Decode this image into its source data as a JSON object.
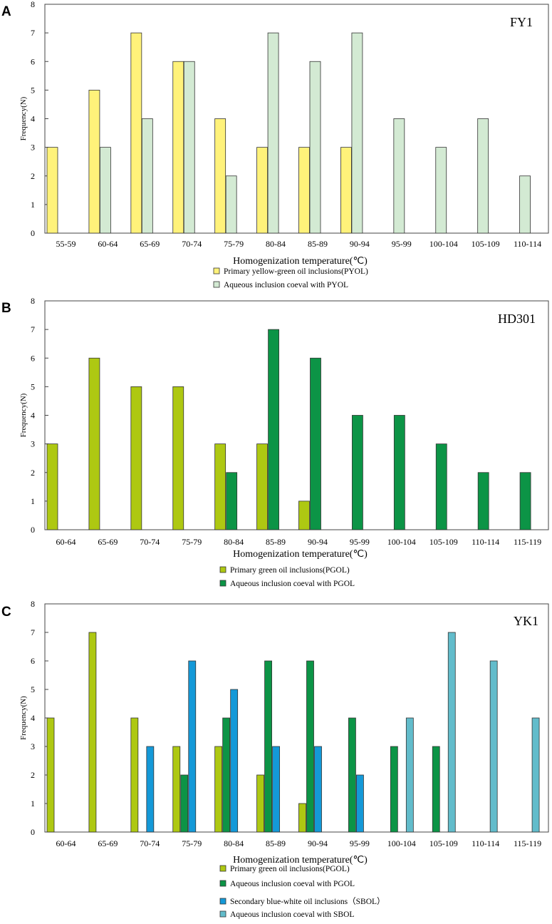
{
  "chart_data": [
    {
      "panel": "A",
      "type": "bar",
      "title": "FY1",
      "xlabel": "Homogenization temperature(℃)",
      "ylabel": "Frequency(N)",
      "ylim": [
        0,
        8
      ],
      "yticks": [
        "0",
        "1",
        "2",
        "3",
        "4",
        "5",
        "6",
        "7",
        "8"
      ],
      "categories": [
        "55-59",
        "60-64",
        "65-69",
        "70-74",
        "75-79",
        "80-84",
        "85-89",
        "90-94",
        "95-99",
        "100-104",
        "105-109",
        "110-114"
      ],
      "series": [
        {
          "name": "Primary yellow-green oil inclusions(PYOL)",
          "color": "#fff27a",
          "values": [
            3,
            5,
            7,
            6,
            4,
            3,
            3,
            3,
            0,
            0,
            0,
            0
          ]
        },
        {
          "name": "Aqueous inclusion coeval with PYOL",
          "color": "#d3ead3",
          "values": [
            0,
            3,
            4,
            6,
            2,
            7,
            6,
            7,
            4,
            3,
            4,
            2
          ]
        }
      ]
    },
    {
      "panel": "B",
      "type": "bar",
      "title": "HD301",
      "xlabel": "Homogenization temperature(℃)",
      "ylabel": "Frequency(N)",
      "ylim": [
        0,
        8
      ],
      "yticks": [
        "0",
        "1",
        "2",
        "3",
        "4",
        "5",
        "6",
        "7",
        "8"
      ],
      "categories": [
        "60-64",
        "65-69",
        "70-74",
        "75-79",
        "80-84",
        "85-89",
        "90-94",
        "95-99",
        "100-104",
        "105-109",
        "110-114",
        "115-119"
      ],
      "series": [
        {
          "name": "Primary green oil inclusions(PGOL)",
          "color": "#aec812",
          "values": [
            3,
            6,
            5,
            5,
            3,
            3,
            1,
            0,
            0,
            0,
            0,
            0
          ]
        },
        {
          "name": "Aqueous inclusion coeval with PGOL",
          "color": "#0c9446",
          "values": [
            0,
            0,
            0,
            0,
            2,
            7,
            6,
            4,
            4,
            3,
            2,
            2
          ]
        }
      ]
    },
    {
      "panel": "C",
      "type": "bar",
      "title": "YK1",
      "xlabel": "Homogenization temperature(℃)",
      "ylabel": "Frequency(N)",
      "ylim": [
        0,
        8
      ],
      "yticks": [
        "0",
        "1",
        "2",
        "3",
        "4",
        "5",
        "6",
        "7",
        "8"
      ],
      "categories": [
        "60-64",
        "65-69",
        "70-74",
        "75-79",
        "80-84",
        "85-89",
        "90-94",
        "95-99",
        "100-104",
        "105-109",
        "110-114",
        "115-119"
      ],
      "series": [
        {
          "name": "Primary green oil inclusions(PGOL)",
          "color": "#aec812",
          "values": [
            4,
            7,
            4,
            3,
            3,
            2,
            1,
            0,
            0,
            0,
            0,
            0
          ]
        },
        {
          "name": "Aqueous inclusion coeval with PGOL",
          "color": "#0c9446",
          "values": [
            0,
            0,
            0,
            2,
            4,
            6,
            6,
            4,
            3,
            3,
            0,
            0
          ]
        },
        {
          "name": "Secondary blue-white oil inclusions（SBOL）",
          "color": "#1499d8",
          "values": [
            0,
            0,
            3,
            6,
            5,
            3,
            3,
            2,
            0,
            0,
            0,
            0
          ]
        },
        {
          "name": "Aqueous inclusion coeval with SBOL",
          "color": "#62bccb",
          "values": [
            0,
            0,
            0,
            0,
            0,
            0,
            0,
            0,
            4,
            7,
            6,
            4
          ]
        }
      ]
    }
  ]
}
